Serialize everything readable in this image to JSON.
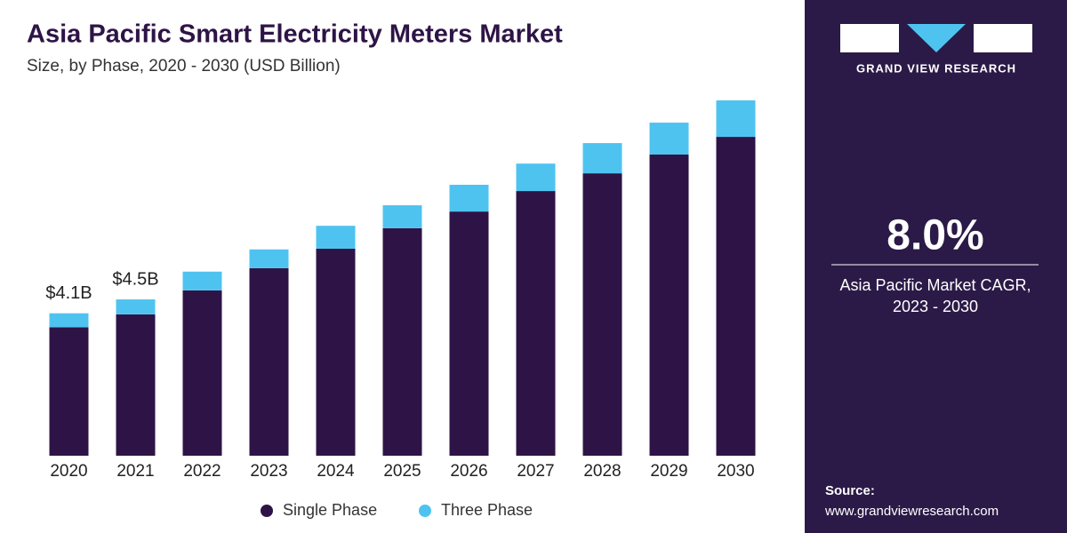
{
  "chart_data": {
    "type": "stacked_bar",
    "title": "Asia Pacific Smart Electricity Meters Market",
    "subtitle": "Size, by Phase, 2020 - 2030 (USD Billion)",
    "categories": [
      "2020",
      "2021",
      "2022",
      "2023",
      "2024",
      "2025",
      "2026",
      "2027",
      "2028",
      "2029",
      "2030"
    ],
    "series": [
      {
        "name": "Single Phase",
        "color": "#2e1446",
        "values": [
          3.7,
          4.07,
          4.76,
          5.4,
          5.96,
          6.55,
          7.03,
          7.62,
          8.13,
          8.67,
          9.18
        ]
      },
      {
        "name": "Three Phase",
        "color": "#4fc3f0",
        "values": [
          0.4,
          0.43,
          0.54,
          0.54,
          0.66,
          0.66,
          0.77,
          0.79,
          0.87,
          0.92,
          1.05
        ]
      }
    ],
    "annotations": [
      {
        "x": "2020",
        "value": 4.1,
        "label": "$4.1B"
      },
      {
        "x": "2021",
        "value": 4.5,
        "label": "$4.5B"
      }
    ],
    "ylim": [
      0,
      10
    ],
    "legend": "bottom"
  },
  "sidebar": {
    "brand": "GRAND VIEW RESEARCH",
    "cagr": "8.0%",
    "cagr_label_1": "Asia Pacific Market CAGR,",
    "cagr_label_2": "2023 - 2030",
    "source_label": "Source:",
    "source_url": "www.grandviewresearch.com"
  }
}
